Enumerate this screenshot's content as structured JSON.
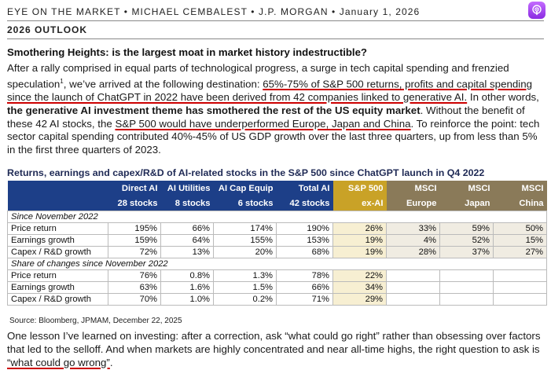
{
  "header": {
    "line": "EYE ON THE MARKET • MICHAEL CEMBALEST • J.P. MORGAN • January 1, 2026",
    "subtitle": "2026 OUTLOOK"
  },
  "podcast_icon": "podcast-icon",
  "section_title": "Smothering Heights: is the largest moat in market history indestructible?",
  "intro": {
    "p1": "After a rally comprised in equal parts of technological progress, a surge in tech capital spending and frenzied speculation",
    "sup": "1",
    "p2": ", we’ve arrived at the following destination: ",
    "ul1": "65%-75% of S&P 500 returns, profits and capital spending since the launch of ChatGPT in 2022 have been derived from 42 companies linked to generative AI.",
    "p3": " In other words, ",
    "bold": "the generative AI investment theme has smothered the rest of the US equity market",
    "p4": ". Without the benefit of these 42 AI stocks, the ",
    "ul2": "S&P 500 would have underperformed Europe, Japan and China",
    "p5": ". To reinforce the point: tech sector capital spending contributed 40%-45% of US GDP growth over the last three quarters, up from less than 5% in the first three quarters of 2023."
  },
  "table": {
    "title": "Returns, earnings and capex/R&D of AI-related stocks in the S&P 500 since ChatGPT launch in Q4 2022",
    "columns": [
      {
        "top": "Direct AI",
        "bottom": "28 stocks"
      },
      {
        "top": "AI Utilities",
        "bottom": "8 stocks"
      },
      {
        "top": "AI Cap Equip",
        "bottom": "6 stocks"
      },
      {
        "top": "Total AI",
        "bottom": "42 stocks"
      },
      {
        "top": "S&P 500",
        "bottom": "ex-AI"
      },
      {
        "top": "MSCI",
        "bottom": "Europe"
      },
      {
        "top": "MSCI",
        "bottom": "Japan"
      },
      {
        "top": "MSCI",
        "bottom": "China"
      }
    ],
    "section1": "Since November 2022",
    "rows1": [
      {
        "label": "Price return",
        "values": [
          "195%",
          "66%",
          "174%",
          "190%",
          "26%",
          "33%",
          "59%",
          "50%"
        ]
      },
      {
        "label": "Earnings growth",
        "values": [
          "159%",
          "64%",
          "155%",
          "153%",
          "19%",
          "4%",
          "52%",
          "15%"
        ]
      },
      {
        "label": "Capex / R&D growth",
        "values": [
          "72%",
          "13%",
          "20%",
          "68%",
          "19%",
          "28%",
          "37%",
          "27%"
        ]
      }
    ],
    "section2": "Share of changes since November 2022",
    "rows2": [
      {
        "label": "Price return",
        "values": [
          "76%",
          "0.8%",
          "1.3%",
          "78%",
          "22%"
        ]
      },
      {
        "label": "Earnings growth",
        "values": [
          "63%",
          "1.6%",
          "1.5%",
          "66%",
          "34%"
        ]
      },
      {
        "label": "Capex / R&D growth",
        "values": [
          "70%",
          "1.0%",
          "0.2%",
          "71%",
          "29%"
        ]
      }
    ],
    "source": "Source: Bloomberg, JPMAM, December 22, 2025"
  },
  "closing": {
    "p1": "One lesson I’ve learned on investing: after a correction, ask “what could go right” rather than obsessing over factors that led to the selloff. And when markets are highly concentrated and near all-time highs, the right question to ask is ",
    "ul": "“what could go wrong”",
    "p2": "."
  }
}
